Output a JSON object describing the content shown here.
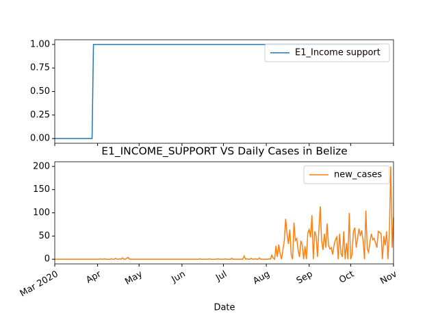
{
  "chart_data": [
    {
      "type": "line",
      "series": [
        {
          "name": "E1_Income support",
          "color": "#1f77b4",
          "values": [
            0,
            0,
            0,
            0,
            0,
            0,
            0,
            0,
            0,
            0,
            0,
            0,
            0,
            0,
            0,
            0,
            0,
            0,
            0,
            0,
            0,
            0,
            0,
            0,
            0,
            0,
            0,
            0,
            1,
            1,
            1,
            1,
            1,
            1,
            1,
            1,
            1,
            1,
            1,
            1,
            1,
            1,
            1,
            1,
            1,
            1,
            1,
            1,
            1,
            1,
            1,
            1,
            1,
            1,
            1,
            1,
            1,
            1,
            1,
            1,
            1,
            1,
            1,
            1,
            1,
            1,
            1,
            1,
            1,
            1,
            1,
            1,
            1,
            1,
            1,
            1,
            1,
            1,
            1,
            1,
            1,
            1,
            1,
            1,
            1,
            1,
            1,
            1,
            1,
            1,
            1,
            1,
            1,
            1,
            1,
            1,
            1,
            1,
            1,
            1,
            1,
            1,
            1,
            1,
            1,
            1,
            1,
            1,
            1,
            1,
            1,
            1,
            1,
            1,
            1,
            1,
            1,
            1,
            1,
            1,
            1,
            1,
            1,
            1,
            1,
            1,
            1,
            1,
            1,
            1,
            1,
            1,
            1,
            1,
            1,
            1,
            1,
            1,
            1,
            1,
            1,
            1,
            1,
            1,
            1,
            1,
            1,
            1,
            1,
            1,
            1,
            1,
            1,
            1,
            1,
            1,
            1,
            1,
            1,
            1,
            1,
            1,
            1,
            1,
            1,
            1,
            1,
            1,
            1,
            1,
            1,
            1,
            1,
            1,
            1,
            1,
            1,
            1,
            1,
            1,
            1,
            1,
            1,
            1,
            1,
            1,
            1,
            1,
            1,
            1,
            1,
            1,
            1,
            1,
            1,
            1,
            1,
            1,
            1,
            1,
            1,
            1,
            1,
            1,
            1,
            1,
            1,
            1,
            1,
            1,
            1,
            1,
            1,
            1,
            1,
            1,
            1,
            1,
            1,
            1,
            1,
            1,
            1,
            1,
            1,
            1,
            1,
            1,
            1,
            1,
            1,
            1,
            1,
            1,
            1,
            1
          ]
        }
      ],
      "ylim": [
        -0.05,
        1.05
      ],
      "yticks": [
        {
          "value": 0,
          "label": "0.00"
        },
        {
          "value": 0.25,
          "label": "0.25"
        },
        {
          "value": 0.5,
          "label": "0.50"
        },
        {
          "value": 0.75,
          "label": "0.75"
        },
        {
          "value": 1,
          "label": "1.00"
        }
      ],
      "legend": "upper right"
    },
    {
      "type": "line",
      "title": "E1_INCOME_SUPPORT VS Daily Cases in Belize",
      "x_label": "Date",
      "categories": [
        "Mar 2020",
        null,
        null,
        null,
        null,
        null,
        null,
        null,
        null,
        null,
        null,
        null,
        null,
        null,
        null,
        null,
        null,
        null,
        null,
        null,
        null,
        null,
        null,
        null,
        null,
        null,
        null,
        null,
        null,
        null,
        null,
        "Apr",
        null,
        null,
        null,
        null,
        null,
        null,
        null,
        null,
        null,
        null,
        null,
        null,
        null,
        null,
        null,
        null,
        null,
        null,
        null,
        null,
        null,
        null,
        null,
        null,
        null,
        null,
        null,
        null,
        null,
        "May",
        null,
        null,
        null,
        null,
        null,
        null,
        null,
        null,
        null,
        null,
        null,
        null,
        null,
        null,
        null,
        null,
        null,
        null,
        null,
        null,
        null,
        null,
        null,
        null,
        null,
        null,
        null,
        null,
        null,
        null,
        "Jun",
        null,
        null,
        null,
        null,
        null,
        null,
        null,
        null,
        null,
        null,
        null,
        null,
        null,
        null,
        null,
        null,
        null,
        null,
        null,
        null,
        null,
        null,
        null,
        null,
        null,
        null,
        null,
        null,
        null,
        "Jul",
        null,
        null,
        null,
        null,
        null,
        null,
        null,
        null,
        null,
        null,
        null,
        null,
        null,
        null,
        null,
        null,
        null,
        null,
        null,
        null,
        null,
        null,
        null,
        null,
        null,
        null,
        null,
        null,
        null,
        null,
        "Aug",
        null,
        null,
        null,
        null,
        null,
        null,
        null,
        null,
        null,
        null,
        null,
        null,
        null,
        null,
        null,
        null,
        null,
        null,
        null,
        null,
        null,
        null,
        null,
        null,
        null,
        null,
        null,
        null,
        null,
        null,
        "Sep",
        null,
        null,
        null,
        null,
        null,
        null,
        null,
        null,
        null,
        null,
        null,
        null,
        null,
        null,
        null,
        null,
        null,
        null,
        null,
        null,
        null,
        null,
        null,
        null,
        null,
        null,
        null,
        null,
        null,
        "Oct",
        null,
        null,
        null,
        null,
        null,
        null,
        null,
        null,
        null,
        null,
        null,
        null,
        null,
        null,
        null,
        null,
        null,
        null,
        null,
        null,
        null,
        null,
        null,
        null,
        null,
        null,
        null,
        null,
        null,
        null,
        "Nov"
      ],
      "series": [
        {
          "name": "new_cases",
          "color": "#ff7f0e",
          "values": [
            0,
            0,
            0,
            0,
            0,
            0,
            0,
            0,
            0,
            0,
            0,
            0,
            0,
            0,
            0,
            0,
            0,
            0,
            0,
            0,
            0,
            0,
            0,
            0,
            0,
            0,
            0,
            0,
            0,
            0,
            0,
            0,
            0,
            1,
            0,
            0,
            1,
            0,
            0,
            0,
            0,
            1,
            0,
            0,
            2,
            0,
            0,
            1,
            0,
            3,
            0,
            0,
            2,
            4,
            0,
            0,
            0,
            0,
            0,
            0,
            0,
            0,
            0,
            0,
            0,
            0,
            0,
            0,
            0,
            0,
            0,
            0,
            0,
            0,
            0,
            0,
            0,
            0,
            0,
            0,
            0,
            0,
            0,
            0,
            0,
            0,
            0,
            0,
            0,
            0,
            0,
            0,
            0,
            0,
            0,
            0,
            0,
            0,
            0,
            0,
            0,
            0,
            0,
            0,
            0,
            1,
            0,
            0,
            0,
            0,
            0,
            0,
            1,
            0,
            0,
            0,
            0,
            0,
            1,
            0,
            0,
            0,
            0,
            1,
            0,
            0,
            0,
            0,
            2,
            0,
            0,
            0,
            0,
            0,
            0,
            0,
            0,
            7,
            0,
            1,
            0,
            0,
            2,
            0,
            0,
            1,
            0,
            0,
            3,
            0,
            0,
            0,
            0,
            0,
            0,
            1,
            0,
            9,
            2,
            0,
            29,
            5,
            32,
            12,
            0,
            20,
            40,
            87,
            55,
            33,
            64,
            10,
            0,
            79,
            40,
            45,
            20,
            5,
            40,
            30,
            0,
            28,
            0,
            56,
            64,
            47,
            95,
            0,
            60,
            50,
            5,
            62,
            114,
            40,
            20,
            55,
            25,
            77,
            30,
            22,
            25,
            10,
            30,
            42,
            48,
            0,
            55,
            12,
            5,
            60,
            0,
            35,
            0,
            100,
            0,
            10,
            60,
            68,
            25,
            45,
            66,
            50,
            62,
            40,
            0,
            105,
            22,
            15,
            38,
            55,
            42,
            45,
            35,
            25,
            60,
            58,
            55,
            0,
            50,
            30,
            60,
            0,
            62,
            200,
            25,
            90
          ]
        }
      ],
      "ylim": [
        -10,
        210
      ],
      "yticks": [
        0,
        50,
        100,
        150,
        200
      ],
      "legend": "upper right"
    }
  ]
}
